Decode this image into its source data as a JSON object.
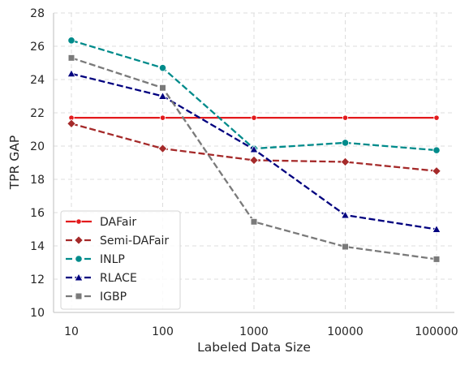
{
  "chart_data": {
    "type": "line",
    "xlabel": "Labeled Data Size",
    "ylabel": "TPR GAP",
    "x_scale": "log",
    "x": [
      10,
      100,
      1000,
      10000,
      100000
    ],
    "x_tick_labels": [
      "10",
      "100",
      "1000",
      "10000",
      "100000"
    ],
    "ylim": [
      10,
      28
    ],
    "y_ticks": [
      10,
      12,
      14,
      16,
      18,
      20,
      22,
      24,
      26,
      28
    ],
    "grid": true,
    "grid_style": "dashed",
    "legend_position": "lower-left",
    "series": [
      {
        "name": "DAFair",
        "values": [
          21.7,
          21.7,
          21.7,
          21.7,
          21.7
        ],
        "color": "#e31a1c",
        "marker": "small-circle",
        "line_style": "solid"
      },
      {
        "name": "Semi-DAFair",
        "values": [
          21.35,
          19.85,
          19.15,
          19.05,
          18.5
        ],
        "color": "#a52a2a",
        "marker": "diamond",
        "line_style": "dashed"
      },
      {
        "name": "INLP",
        "values": [
          26.35,
          24.7,
          19.85,
          20.2,
          19.75
        ],
        "color": "#008b8b",
        "marker": "circle",
        "line_style": "dashed"
      },
      {
        "name": "RLACE",
        "values": [
          24.35,
          23.0,
          19.8,
          15.85,
          15.0
        ],
        "color": "#00007f",
        "marker": "triangle",
        "line_style": "dashed"
      },
      {
        "name": "IGBP",
        "values": [
          25.3,
          23.5,
          15.45,
          13.95,
          13.2
        ],
        "color": "#7a7a7a",
        "marker": "square",
        "line_style": "dashed"
      }
    ]
  }
}
